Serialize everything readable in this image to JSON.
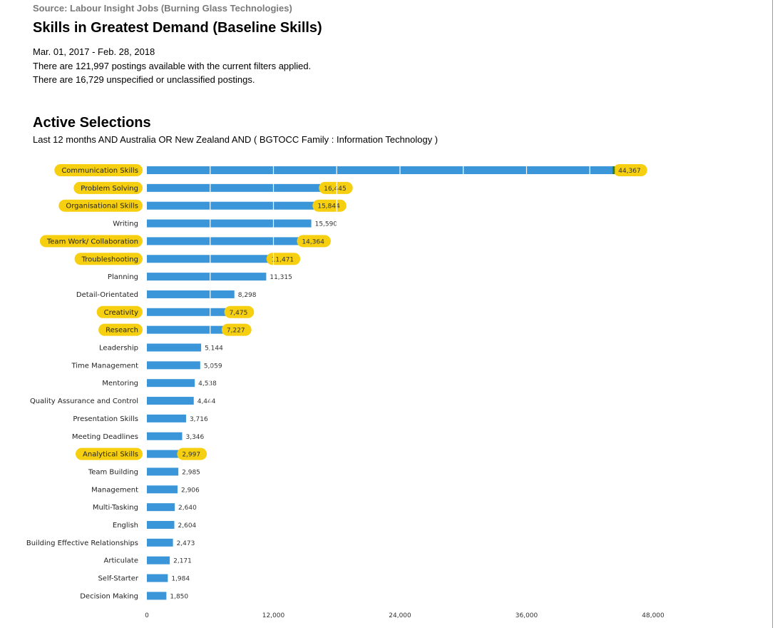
{
  "header": {
    "source": "Source: Labour Insight Jobs (Burning Glass Technologies)",
    "title": "Skills in Greatest Demand (Baseline Skills)",
    "date_range": "Mar. 01, 2017 - Feb. 28, 2018",
    "postings_available": "There are 121,997 postings available with the current filters applied.",
    "postings_unspecified": "There are 16,729 unspecified or unclassified postings."
  },
  "selections": {
    "title": "Active Selections",
    "text": "Last 12 months AND Australia OR New Zealand AND ( BGTOCC Family : Information Technology )"
  },
  "colors": {
    "bar": "#3a96d8",
    "highlight": "#f5cf10",
    "bar_end_marker": "#2f7d2a"
  },
  "chart_data": {
    "type": "bar",
    "orientation": "horizontal",
    "categories": [
      "Communication Skills",
      "Problem Solving",
      "Organisational Skills",
      "Writing",
      "Team Work/ Collaboration",
      "Troubleshooting",
      "Planning",
      "Detail-Orientated",
      "Creativity",
      "Research",
      "Leadership",
      "Time Management",
      "Mentoring",
      "Quality Assurance and Control",
      "Presentation Skills",
      "Meeting Deadlines",
      "Analytical Skills",
      "Team Building",
      "Management",
      "Multi-Tasking",
      "English",
      "Building Effective Relationships",
      "Articulate",
      "Self-Starter",
      "Decision Making"
    ],
    "values": [
      44367,
      16445,
      15844,
      15590,
      14364,
      11471,
      11315,
      8298,
      7475,
      7227,
      5144,
      5059,
      4538,
      4444,
      3716,
      3346,
      2997,
      2985,
      2906,
      2640,
      2604,
      2473,
      2171,
      1984,
      1850
    ],
    "value_labels": [
      "44,367",
      "16,445",
      "15,844",
      "15,590",
      "14,364",
      "11,471",
      "11,315",
      "8,298",
      "7,475",
      "7,227",
      "5,144",
      "5,059",
      "4,538",
      "4,444",
      "3,716",
      "3,346",
      "2,997",
      "2,985",
      "2,906",
      "2,640",
      "2,604",
      "2,473",
      "2,171",
      "1,984",
      "1,850"
    ],
    "highlighted": [
      true,
      true,
      true,
      false,
      true,
      true,
      false,
      false,
      true,
      true,
      false,
      false,
      false,
      false,
      false,
      false,
      true,
      false,
      false,
      false,
      false,
      false,
      false,
      false,
      false
    ],
    "xlim": [
      0,
      48000
    ],
    "x_ticks": [
      0,
      12000,
      24000,
      36000,
      48000
    ],
    "x_tick_labels": [
      "0",
      "12,000",
      "24,000",
      "36,000",
      "48,000"
    ],
    "vertical_gridlines_over_bars": true,
    "title": "",
    "xlabel": "",
    "ylabel": ""
  }
}
